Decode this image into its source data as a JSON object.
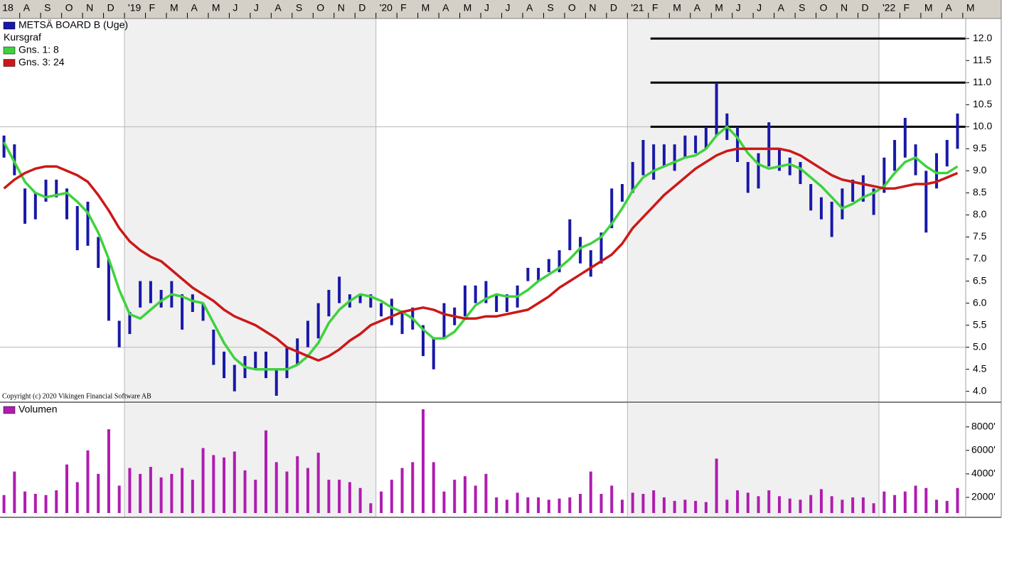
{
  "chart_data": [
    {
      "type": "combo",
      "legend_heading": "Kursgraf",
      "annotation": "Copyright (c) 2020 Vikingen Financial Software AB",
      "x": [
        -5.75,
        -5.25,
        -4.75,
        -4.25,
        -3.75,
        -3.25,
        -2.75,
        -2.25,
        -1.75,
        -1.25,
        -0.75,
        -0.25,
        0.25,
        0.75,
        1.25,
        1.75,
        2.25,
        2.75,
        3.25,
        3.75,
        4.25,
        4.75,
        5.25,
        5.75,
        6.25,
        6.75,
        7.25,
        7.75,
        8.25,
        8.75,
        9.25,
        9.75,
        10.25,
        10.75,
        11.25,
        11.75,
        12.25,
        12.75,
        13.25,
        13.75,
        14.25,
        14.75,
        15.25,
        15.75,
        16.25,
        16.75,
        17.25,
        17.75,
        18.25,
        18.75,
        19.25,
        19.75,
        20.25,
        20.75,
        21.25,
        21.75,
        22.25,
        22.75,
        23.25,
        23.75,
        24.25,
        24.75,
        25.25,
        25.75,
        26.25,
        26.75,
        27.25,
        27.75,
        28.25,
        28.75,
        29.25,
        29.75,
        30.25,
        30.75,
        31.25,
        31.75,
        32.25,
        32.75,
        33.25,
        33.75,
        34.25,
        34.75,
        35.25,
        35.75,
        36.25,
        36.75,
        37.25,
        37.75,
        38.25,
        38.75,
        39.25,
        39.75
      ],
      "xlim": [
        -5.94,
        40.14
      ],
      "xticks": [
        {
          "value": -6,
          "label": "18"
        },
        {
          "value": -5,
          "label": "A"
        },
        {
          "value": -4,
          "label": "S"
        },
        {
          "value": -3,
          "label": "O"
        },
        {
          "value": -2,
          "label": "N"
        },
        {
          "value": -1,
          "label": "D"
        },
        {
          "value": 0,
          "label": "'19"
        },
        {
          "value": 1,
          "label": "F"
        },
        {
          "value": 2,
          "label": "M"
        },
        {
          "value": 3,
          "label": "A"
        },
        {
          "value": 4,
          "label": "M"
        },
        {
          "value": 5,
          "label": "J"
        },
        {
          "value": 6,
          "label": "J"
        },
        {
          "value": 7,
          "label": "A"
        },
        {
          "value": 8,
          "label": "S"
        },
        {
          "value": 9,
          "label": "O"
        },
        {
          "value": 10,
          "label": "N"
        },
        {
          "value": 11,
          "label": "D"
        },
        {
          "value": 12,
          "label": "'20"
        },
        {
          "value": 13,
          "label": "F"
        },
        {
          "value": 14,
          "label": "M"
        },
        {
          "value": 15,
          "label": "A"
        },
        {
          "value": 16,
          "label": "M"
        },
        {
          "value": 17,
          "label": "J"
        },
        {
          "value": 18,
          "label": "J"
        },
        {
          "value": 19,
          "label": "A"
        },
        {
          "value": 20,
          "label": "S"
        },
        {
          "value": 21,
          "label": "O"
        },
        {
          "value": 22,
          "label": "N"
        },
        {
          "value": 23,
          "label": "D"
        },
        {
          "value": 24,
          "label": "'21"
        },
        {
          "value": 25,
          "label": "F"
        },
        {
          "value": 26,
          "label": "M"
        },
        {
          "value": 27,
          "label": "A"
        },
        {
          "value": 28,
          "label": "M"
        },
        {
          "value": 29,
          "label": "J"
        },
        {
          "value": 30,
          "label": "J"
        },
        {
          "value": 31,
          "label": "A"
        },
        {
          "value": 32,
          "label": "S"
        },
        {
          "value": 33,
          "label": "O"
        },
        {
          "value": 34,
          "label": "N"
        },
        {
          "value": 35,
          "label": "D"
        },
        {
          "value": 36,
          "label": "'22"
        },
        {
          "value": 37,
          "label": "F"
        },
        {
          "value": 38,
          "label": "M"
        },
        {
          "value": 39,
          "label": "A"
        },
        {
          "value": 40,
          "label": "M"
        }
      ],
      "xgrid": [
        0,
        12,
        24,
        36
      ],
      "bands": [
        [
          0,
          12
        ],
        [
          24,
          36
        ]
      ],
      "ylim": [
        3.77,
        12.39
      ],
      "yticks": [
        {
          "value": 4,
          "label": "4.0"
        },
        {
          "value": 4.5,
          "label": "4.5"
        },
        {
          "value": 5,
          "label": "5.0"
        },
        {
          "value": 5.5,
          "label": "5.5"
        },
        {
          "value": 6,
          "label": "6.0"
        },
        {
          "value": 6.5,
          "label": "6.5"
        },
        {
          "value": 7,
          "label": "7.0"
        },
        {
          "value": 7.5,
          "label": "7.5"
        },
        {
          "value": 8,
          "label": "8.0"
        },
        {
          "value": 8.5,
          "label": "8.5"
        },
        {
          "value": 9,
          "label": "9.0"
        },
        {
          "value": 9.5,
          "label": "9.5"
        },
        {
          "value": 10,
          "label": "10.0"
        },
        {
          "value": 10.5,
          "label": "10.5"
        },
        {
          "value": 11,
          "label": "11.0"
        },
        {
          "value": 11.5,
          "label": "11.5"
        },
        {
          "value": 12,
          "label": "12.0"
        }
      ],
      "ygrid": [
        5,
        10
      ],
      "hlines": {
        "from": 25.1,
        "values": [
          10,
          11,
          12
        ]
      },
      "series": [
        {
          "name": "METSÄ BOARD B (Uge)",
          "type": "range",
          "color": "#1818a8",
          "high": [
            9.8,
            9.6,
            8.6,
            8.5,
            8.8,
            8.8,
            8.6,
            8.2,
            8.3,
            7.5,
            7.0,
            5.6,
            5.8,
            6.5,
            6.5,
            6.3,
            6.5,
            6.2,
            6.2,
            6.0,
            5.4,
            4.9,
            4.6,
            4.8,
            4.9,
            4.9,
            4.5,
            5.0,
            5.2,
            5.6,
            6.0,
            6.3,
            6.6,
            6.2,
            6.2,
            6.2,
            6.0,
            6.1,
            5.8,
            5.9,
            5.5,
            5.2,
            6.0,
            5.9,
            6.4,
            6.4,
            6.5,
            6.2,
            6.2,
            6.4,
            6.8,
            6.8,
            7.0,
            7.2,
            7.9,
            7.5,
            7.2,
            7.6,
            8.6,
            8.7,
            9.2,
            9.7,
            9.6,
            9.6,
            9.6,
            9.8,
            9.8,
            10.0,
            11.0,
            10.3,
            10.0,
            9.2,
            9.4,
            10.1,
            9.5,
            9.3,
            9.2,
            8.7,
            8.4,
            8.3,
            8.6,
            8.8,
            8.9,
            8.6,
            9.3,
            9.7,
            10.2,
            9.6,
            9.0,
            9.4,
            9.7,
            10.3
          ],
          "low": [
            9.3,
            8.9,
            7.8,
            7.9,
            8.3,
            8.4,
            7.9,
            7.2,
            7.3,
            6.8,
            5.6,
            5.0,
            5.3,
            5.9,
            6.0,
            5.9,
            5.9,
            5.4,
            5.8,
            5.6,
            4.6,
            4.3,
            4.0,
            4.3,
            4.5,
            4.3,
            3.9,
            4.3,
            4.6,
            5.0,
            5.2,
            5.7,
            6.0,
            5.9,
            6.0,
            5.9,
            5.7,
            5.5,
            5.3,
            5.4,
            4.8,
            4.5,
            5.2,
            5.5,
            5.7,
            6.0,
            6.0,
            5.8,
            5.8,
            5.9,
            6.5,
            6.5,
            6.7,
            6.7,
            7.2,
            6.9,
            6.6,
            6.9,
            7.7,
            8.3,
            8.5,
            8.9,
            8.8,
            9.1,
            9.0,
            9.3,
            9.4,
            9.5,
            9.8,
            9.7,
            9.2,
            8.5,
            8.6,
            9.1,
            9.0,
            8.9,
            8.7,
            8.1,
            7.9,
            7.5,
            7.9,
            8.3,
            8.3,
            8.0,
            8.5,
            9.0,
            9.3,
            8.9,
            7.6,
            8.6,
            9.1,
            9.5
          ]
        },
        {
          "name": "Gns. 1: 8",
          "type": "line",
          "color": "#3ed23e",
          "values": [
            9.65,
            9.2,
            8.75,
            8.5,
            8.4,
            8.45,
            8.5,
            8.3,
            8.05,
            7.6,
            7.0,
            6.3,
            5.75,
            5.65,
            5.85,
            6.05,
            6.2,
            6.15,
            6.05,
            6.0,
            5.55,
            5.1,
            4.75,
            4.55,
            4.5,
            4.5,
            4.5,
            4.5,
            4.6,
            4.8,
            5.1,
            5.55,
            5.85,
            6.05,
            6.2,
            6.15,
            6.05,
            5.9,
            5.8,
            5.65,
            5.4,
            5.2,
            5.2,
            5.35,
            5.65,
            5.95,
            6.1,
            6.2,
            6.15,
            6.15,
            6.3,
            6.5,
            6.65,
            6.8,
            7.0,
            7.25,
            7.35,
            7.5,
            7.8,
            8.15,
            8.55,
            8.85,
            9.0,
            9.1,
            9.2,
            9.3,
            9.35,
            9.5,
            9.8,
            10.0,
            9.75,
            9.4,
            9.15,
            9.05,
            9.1,
            9.15,
            9.05,
            8.85,
            8.65,
            8.4,
            8.15,
            8.25,
            8.4,
            8.5,
            8.65,
            8.95,
            9.2,
            9.3,
            9.1,
            8.95,
            8.95,
            9.1
          ]
        },
        {
          "name": "Gns. 3: 24",
          "type": "line",
          "color": "#cc1818",
          "values": [
            8.6,
            8.8,
            8.95,
            9.05,
            9.1,
            9.1,
            9.0,
            8.9,
            8.75,
            8.45,
            8.1,
            7.7,
            7.4,
            7.2,
            7.05,
            6.95,
            6.75,
            6.55,
            6.35,
            6.2,
            6.05,
            5.85,
            5.7,
            5.6,
            5.5,
            5.35,
            5.2,
            5.0,
            4.9,
            4.8,
            4.7,
            4.8,
            4.95,
            5.15,
            5.3,
            5.5,
            5.6,
            5.7,
            5.8,
            5.85,
            5.9,
            5.85,
            5.75,
            5.7,
            5.65,
            5.65,
            5.7,
            5.7,
            5.75,
            5.8,
            5.85,
            6.0,
            6.15,
            6.35,
            6.5,
            6.65,
            6.8,
            6.95,
            7.1,
            7.35,
            7.7,
            7.95,
            8.2,
            8.45,
            8.65,
            8.85,
            9.05,
            9.2,
            9.35,
            9.45,
            9.5,
            9.5,
            9.5,
            9.5,
            9.5,
            9.45,
            9.35,
            9.2,
            9.05,
            8.9,
            8.8,
            8.75,
            8.7,
            8.65,
            8.6,
            8.6,
            8.65,
            8.7,
            8.7,
            8.75,
            8.85,
            8.95
          ]
        }
      ]
    },
    {
      "type": "bar",
      "x": [
        -5.75,
        -5.25,
        -4.75,
        -4.25,
        -3.75,
        -3.25,
        -2.75,
        -2.25,
        -1.75,
        -1.25,
        -0.75,
        -0.25,
        0.25,
        0.75,
        1.25,
        1.75,
        2.25,
        2.75,
        3.25,
        3.75,
        4.25,
        4.75,
        5.25,
        5.75,
        6.25,
        6.75,
        7.25,
        7.75,
        8.25,
        8.75,
        9.25,
        9.75,
        10.25,
        10.75,
        11.25,
        11.75,
        12.25,
        12.75,
        13.25,
        13.75,
        14.25,
        14.75,
        15.25,
        15.75,
        16.25,
        16.75,
        17.25,
        17.75,
        18.25,
        18.75,
        19.25,
        19.75,
        20.25,
        20.75,
        21.25,
        21.75,
        22.25,
        22.75,
        23.25,
        23.75,
        24.25,
        24.75,
        25.25,
        25.75,
        26.25,
        26.75,
        27.25,
        27.75,
        28.25,
        28.75,
        29.25,
        29.75,
        30.25,
        30.75,
        31.25,
        31.75,
        32.25,
        32.75,
        33.25,
        33.75,
        34.25,
        34.75,
        35.25,
        35.75,
        36.25,
        36.75,
        37.25,
        37.75,
        38.25,
        38.75,
        39.25,
        39.75
      ],
      "xlim": [
        -5.94,
        40.14
      ],
      "ylim": [
        667,
        9800
      ],
      "yticks": [
        {
          "value": 2000,
          "label": "2000'"
        },
        {
          "value": 4000,
          "label": "4000'"
        },
        {
          "value": 6000,
          "label": "6000'"
        },
        {
          "value": 8000,
          "label": "8000'"
        }
      ],
      "series": [
        {
          "name": "Volumen",
          "color": "#b01cb0",
          "values": [
            2200,
            4200,
            2500,
            2300,
            2200,
            2600,
            4800,
            3300,
            6000,
            4000,
            7800,
            3000,
            4500,
            4000,
            4600,
            3700,
            4000,
            4500,
            3500,
            6200,
            5600,
            5400,
            5900,
            4300,
            3500,
            7700,
            5000,
            4200,
            5500,
            4500,
            5800,
            3500,
            3500,
            3300,
            2800,
            1500,
            2500,
            3500,
            4500,
            5000,
            9500,
            5000,
            2500,
            3500,
            3800,
            3000,
            4000,
            2000,
            1800,
            2400,
            2000,
            2000,
            1800,
            1900,
            2000,
            2300,
            4200,
            2300,
            3000,
            1800,
            2400,
            2300,
            2600,
            2000,
            1700,
            1800,
            1700,
            1600,
            5300,
            1800,
            2600,
            2400,
            2100,
            2600,
            2100,
            1900,
            1800,
            2200,
            2700,
            2100,
            1800,
            2000,
            2000,
            1500,
            2500,
            2200,
            2500,
            3000,
            2800,
            1800,
            1700,
            2800
          ]
        }
      ]
    }
  ]
}
